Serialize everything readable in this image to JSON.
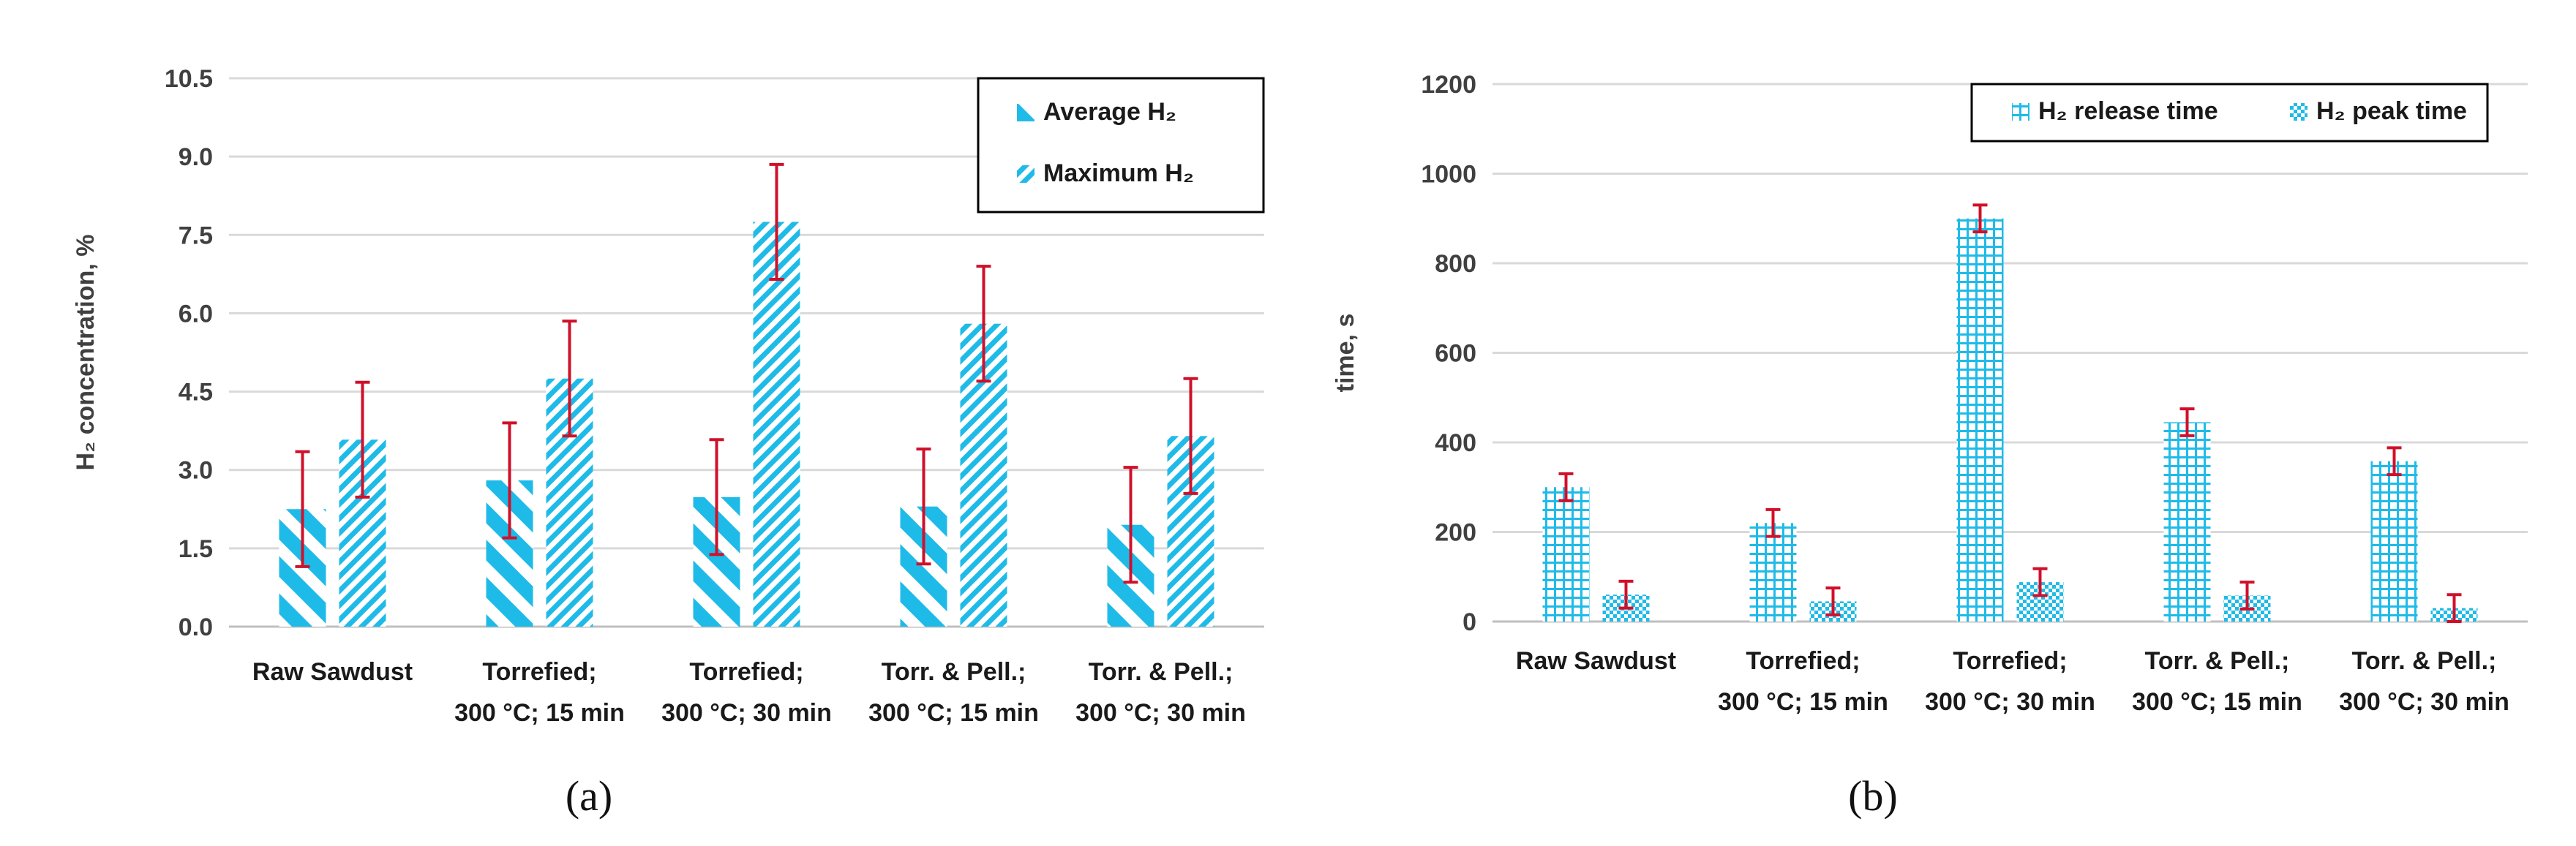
{
  "chart_data": [
    {
      "type": "bar",
      "panel_label": "(a)",
      "title": "",
      "xlabel": "",
      "ylabel": "H₂ concentration, %",
      "ylim": [
        0,
        10.5
      ],
      "yticks": [
        "0.0",
        "1.5",
        "3.0",
        "4.5",
        "6.0",
        "7.5",
        "9.0",
        "10.5"
      ],
      "grid": true,
      "legend_position": "top-right",
      "categories": [
        [
          "Raw Sawdust"
        ],
        [
          "Torrefied;",
          "300 °C; 15 min"
        ],
        [
          "Torrefied;",
          "300 °C; 30 min"
        ],
        [
          "Torr. & Pell.;",
          "300 °C; 15 min"
        ],
        [
          "Torr. & Pell.;",
          "300 °C; 30 min"
        ]
      ],
      "series": [
        {
          "name": "Average H₂",
          "pattern": "wide-diagonal",
          "values": [
            2.25,
            2.8,
            2.48,
            2.3,
            1.95
          ],
          "errors": [
            1.1,
            1.1,
            1.1,
            1.1,
            1.1
          ]
        },
        {
          "name": "Maximum H₂",
          "pattern": "narrow-diagonal",
          "values": [
            3.58,
            4.75,
            7.75,
            5.8,
            3.65
          ],
          "errors": [
            1.1,
            1.1,
            1.1,
            1.1,
            1.1
          ]
        }
      ]
    },
    {
      "type": "bar",
      "panel_label": "(b)",
      "title": "",
      "xlabel": "",
      "ylabel": "time, s",
      "ylim": [
        0,
        1200
      ],
      "yticks": [
        "0",
        "200",
        "400",
        "600",
        "800",
        "1000",
        "1200"
      ],
      "grid": true,
      "legend_position": "top-right",
      "categories": [
        [
          "Raw Sawdust"
        ],
        [
          "Torrefied;",
          "300 °C; 15 min"
        ],
        [
          "Torrefied;",
          "300 °C; 30 min"
        ],
        [
          "Torr. & Pell.;",
          "300 °C; 15 min"
        ],
        [
          "Torr. & Pell.;",
          "300 °C; 30 min"
        ]
      ],
      "series": [
        {
          "name": "H₂ release time",
          "pattern": "grid",
          "values": [
            300,
            220,
            900,
            445,
            358
          ],
          "errors": [
            30,
            30,
            30,
            30,
            30
          ]
        },
        {
          "name": "H₂ peak time",
          "pattern": "checker",
          "values": [
            60,
            45,
            88,
            58,
            30
          ],
          "errors": [
            30,
            30,
            30,
            30,
            30
          ]
        }
      ]
    }
  ],
  "colors": {
    "bar": "#1fbbe8",
    "error": "#d0102a",
    "grid": "#d9d9d9",
    "axis": "#bfbfbf"
  }
}
